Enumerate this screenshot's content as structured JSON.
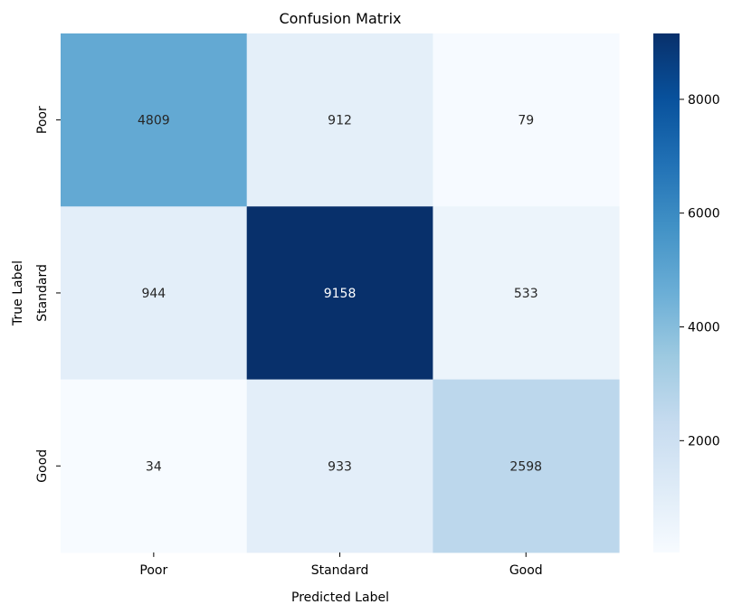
{
  "chart_data": {
    "type": "heatmap",
    "title": "Confusion Matrix",
    "xlabel": "Predicted Label",
    "ylabel": "True Label",
    "x_categories": [
      "Poor",
      "Standard",
      "Good"
    ],
    "y_categories": [
      "Poor",
      "Standard",
      "Good"
    ],
    "values": [
      [
        4809,
        912,
        79
      ],
      [
        944,
        9158,
        533
      ],
      [
        34,
        933,
        2598
      ]
    ],
    "colormap": "Blues",
    "colorbar": {
      "min": 34,
      "max": 9158,
      "ticks": [
        2000,
        4000,
        6000,
        8000
      ],
      "tick_labels": [
        "2000",
        "4000",
        "6000",
        "8000"
      ]
    }
  }
}
